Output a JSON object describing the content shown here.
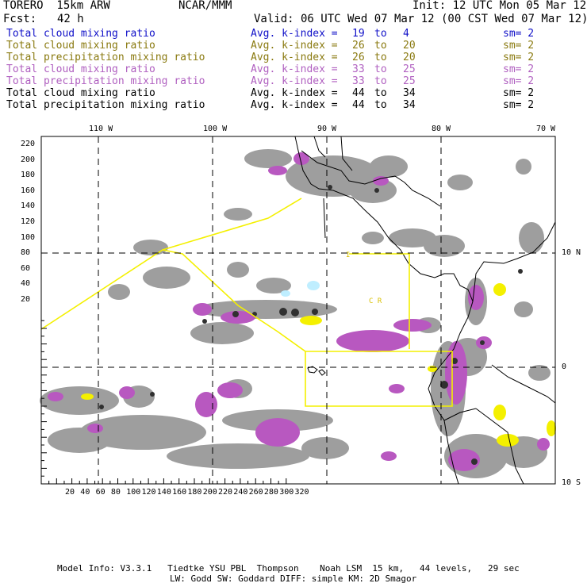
{
  "header": {
    "model": "TORERO  15km ARW",
    "org": "NCAR/MMM",
    "init": "Init: 12 UTC Mon 05 Mar 12",
    "fcst_label": "Fcst:",
    "fcst_value": "42 h",
    "valid": "Valid: 06 UTC Wed 07 Mar 12 (00 CST Wed 07 Mar 12)"
  },
  "legend": [
    {
      "field": "Total cloud mixing ratio",
      "kindex": "Avg. k-index =",
      "from": "19",
      "to_word": "to",
      "to": "4",
      "sm": "sm= 2",
      "color": "#1010c8"
    },
    {
      "field": "Total cloud mixing ratio",
      "kindex": "Avg. k-index =",
      "from": "26",
      "to_word": "to",
      "to": "20",
      "sm": "sm= 2",
      "color": "#8a7a10"
    },
    {
      "field": "Total precipitation mixing ratio",
      "kindex": "Avg. k-index =",
      "from": "26",
      "to_word": "to",
      "to": "20",
      "sm": "sm= 2",
      "color": "#8a7a10"
    },
    {
      "field": "Total cloud mixing ratio",
      "kindex": "Avg. k-index =",
      "from": "33",
      "to_word": "to",
      "to": "25",
      "sm": "sm= 2",
      "color": "#b060c0"
    },
    {
      "field": "Total precipitation mixing ratio",
      "kindex": "Avg. k-index =",
      "from": "33",
      "to_word": "to",
      "to": "25",
      "sm": "sm= 2",
      "color": "#b060c0"
    },
    {
      "field": "Total cloud mixing ratio",
      "kindex": "Avg. k-index =",
      "from": "44",
      "to_word": "to",
      "to": "34",
      "sm": "sm= 2",
      "color": "#000000"
    },
    {
      "field": "Total precipitation mixing ratio",
      "kindex": "Avg. k-index =",
      "from": "44",
      "to_word": "to",
      "to": "34",
      "sm": "sm= 2",
      "color": "#000000"
    }
  ],
  "axes": {
    "top_lon": [
      "110 W",
      "100 W",
      "90 W",
      "80 W",
      "70 W"
    ],
    "right_lat": [
      "10 N",
      "0",
      "10 S"
    ],
    "left_y": [
      "220",
      "200",
      "180",
      "160",
      "140",
      "120",
      "100",
      "80",
      "60",
      "40",
      "20"
    ],
    "bottom_x": [
      "20",
      "40",
      "60",
      "80",
      "100",
      "120",
      "140",
      "160",
      "180",
      "200",
      "220",
      "240",
      "260",
      "280",
      "300",
      "320"
    ]
  },
  "map_labels": {
    "region_label": "C R",
    "small_mark": "I"
  },
  "colors": {
    "gray": "#9a9a9a",
    "purple": "#b858c0",
    "yellow": "#f4f000",
    "cyan": "#bfeeff"
  },
  "footer": {
    "line1": "Model Info: V3.3.1   Tiedtke YSU PBL  Thompson    Noah LSM  15 km,   44 levels,   29 sec",
    "line2": "LW: Godd SW: Goddard DIFF: simple KM: 2D Smagor"
  }
}
